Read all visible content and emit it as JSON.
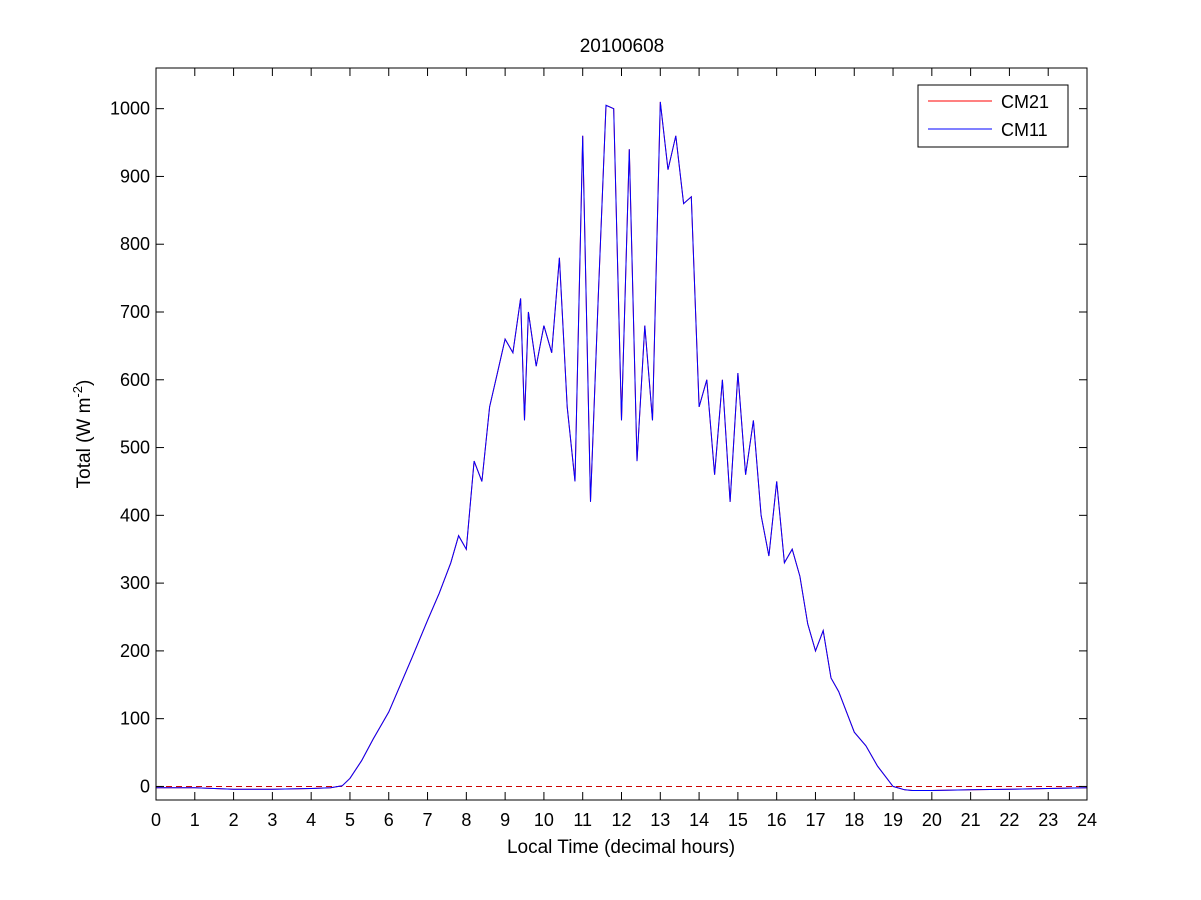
{
  "chart_data": {
    "type": "line",
    "title": "20100608",
    "xlabel": "Local Time (decimal hours)",
    "ylabel_main": "Total (W m",
    "ylabel_sup": "-2",
    "ylabel_close": ")",
    "xlim": [
      0,
      24
    ],
    "ylim": [
      -20,
      1060
    ],
    "xticks": [
      "0",
      "1",
      "2",
      "3",
      "4",
      "5",
      "6",
      "7",
      "8",
      "9",
      "10",
      "11",
      "12",
      "13",
      "14",
      "15",
      "16",
      "17",
      "18",
      "19",
      "20",
      "21",
      "22",
      "23",
      "24"
    ],
    "yticks": [
      "0",
      "100",
      "200",
      "300",
      "400",
      "500",
      "600",
      "700",
      "800",
      "900",
      "1000"
    ],
    "grid": false,
    "legend_position": "top-right",
    "reference_line": {
      "y": 0,
      "style": "dashed",
      "color": "#cc0000"
    },
    "series": [
      {
        "name": "CM21",
        "color": "#ff0000",
        "x": [
          0,
          1,
          2,
          3,
          4,
          4.5,
          4.8,
          5,
          5.3,
          5.6,
          6,
          6.3,
          6.6,
          7,
          7.3,
          7.6,
          7.8,
          8,
          8.2,
          8.4,
          8.6,
          8.8,
          9,
          9.2,
          9.4,
          9.5,
          9.6,
          9.8,
          10,
          10.2,
          10.4,
          10.6,
          10.8,
          11,
          11.2,
          11.4,
          11.6,
          11.8,
          12,
          12.2,
          12.4,
          12.6,
          12.8,
          13,
          13.2,
          13.4,
          13.6,
          13.8,
          14,
          14.2,
          14.4,
          14.6,
          14.8,
          15,
          15.2,
          15.4,
          15.6,
          15.8,
          16,
          16.2,
          16.4,
          16.6,
          16.8,
          17,
          17.2,
          17.4,
          17.6,
          17.8,
          18,
          18.3,
          18.6,
          19,
          19.3,
          19.5,
          19.7,
          20,
          21,
          22,
          23,
          24
        ],
        "values": [
          -2,
          -2,
          -4,
          -4,
          -3,
          -2,
          1,
          12,
          38,
          70,
          110,
          150,
          190,
          245,
          285,
          330,
          370,
          350,
          480,
          450,
          560,
          610,
          660,
          640,
          720,
          540,
          700,
          620,
          680,
          640,
          780,
          560,
          450,
          960,
          420,
          720,
          1005,
          1000,
          540,
          940,
          480,
          680,
          540,
          1010,
          910,
          960,
          860,
          870,
          560,
          600,
          460,
          600,
          420,
          610,
          460,
          540,
          400,
          340,
          450,
          330,
          350,
          310,
          240,
          200,
          230,
          160,
          140,
          110,
          80,
          60,
          30,
          0,
          -5,
          -6,
          -6,
          -6,
          -5,
          -4,
          -3,
          -2
        ]
      },
      {
        "name": "CM11",
        "color": "#0000ff",
        "x": [
          0,
          1,
          2,
          3,
          4,
          4.5,
          4.8,
          5,
          5.3,
          5.6,
          6,
          6.3,
          6.6,
          7,
          7.3,
          7.6,
          7.8,
          8,
          8.2,
          8.4,
          8.6,
          8.8,
          9,
          9.2,
          9.4,
          9.5,
          9.6,
          9.8,
          10,
          10.2,
          10.4,
          10.6,
          10.8,
          11,
          11.2,
          11.4,
          11.6,
          11.8,
          12,
          12.2,
          12.4,
          12.6,
          12.8,
          13,
          13.2,
          13.4,
          13.6,
          13.8,
          14,
          14.2,
          14.4,
          14.6,
          14.8,
          15,
          15.2,
          15.4,
          15.6,
          15.8,
          16,
          16.2,
          16.4,
          16.6,
          16.8,
          17,
          17.2,
          17.4,
          17.6,
          17.8,
          18,
          18.3,
          18.6,
          19,
          19.3,
          19.5,
          19.7,
          20,
          21,
          22,
          23,
          24
        ],
        "values": [
          -2,
          -2,
          -4,
          -4,
          -3,
          -2,
          1,
          12,
          38,
          70,
          110,
          150,
          190,
          245,
          285,
          330,
          370,
          350,
          480,
          450,
          560,
          610,
          660,
          640,
          720,
          540,
          700,
          620,
          680,
          640,
          780,
          560,
          450,
          960,
          420,
          720,
          1005,
          1000,
          540,
          940,
          480,
          680,
          540,
          1010,
          910,
          960,
          860,
          870,
          560,
          600,
          460,
          600,
          420,
          610,
          460,
          540,
          400,
          340,
          450,
          330,
          350,
          310,
          240,
          200,
          230,
          160,
          140,
          110,
          80,
          60,
          30,
          0,
          -5,
          -6,
          -6,
          -6,
          -5,
          -4,
          -3,
          -2
        ]
      }
    ]
  }
}
